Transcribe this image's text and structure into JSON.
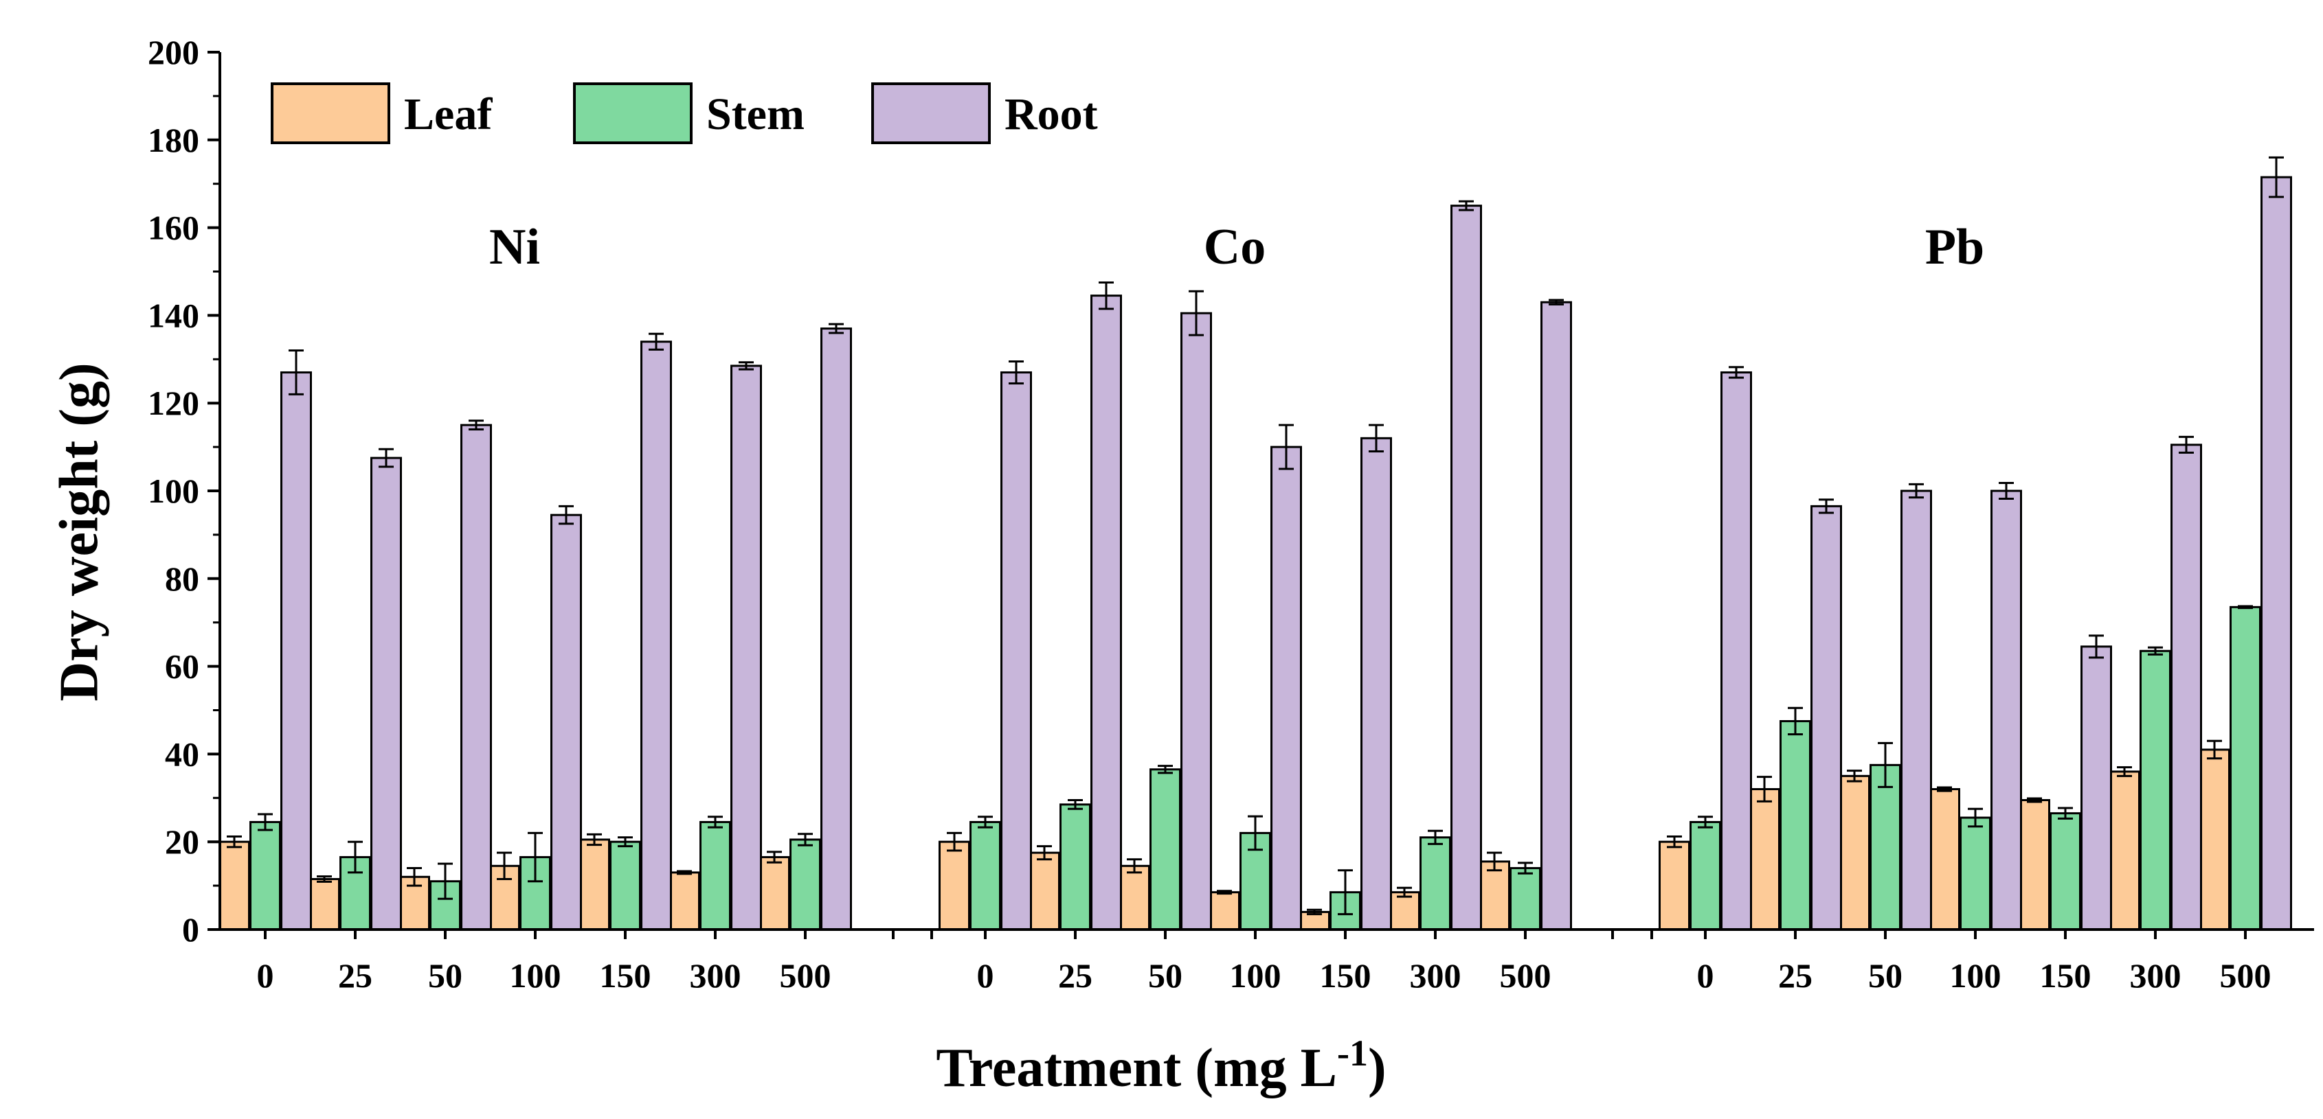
{
  "chart_data": {
    "type": "bar",
    "title": "",
    "xlabel": "Treatment (mg L",
    "xlabel_superscript": "-1",
    "xlabel_suffix": ")",
    "ylabel": "Dry weight (g)",
    "ylim": [
      0,
      200
    ],
    "yticks": [
      0,
      20,
      40,
      60,
      80,
      100,
      120,
      140,
      160,
      180,
      200
    ],
    "grid": false,
    "legend_position": "top-left",
    "categories": [
      "0",
      "25",
      "50",
      "100",
      "150",
      "300",
      "500"
    ],
    "series_meta": [
      {
        "name": "Leaf",
        "color": "#FDCB98"
      },
      {
        "name": "Stem",
        "color": "#7FD99F"
      },
      {
        "name": "Root",
        "color": "#C8B6DA"
      }
    ],
    "groups": [
      {
        "label": "Ni",
        "series": [
          {
            "name": "Leaf",
            "values": [
              20,
              11.5,
              12,
              14.5,
              20.5,
              13,
              16.5
            ],
            "errors": [
              1.2,
              0.6,
              2,
              3,
              1.2,
              0.3,
              1.2
            ]
          },
          {
            "name": "Stem",
            "values": [
              24.5,
              16.5,
              11,
              16.5,
              20,
              24.5,
              20.5
            ],
            "errors": [
              1.8,
              3.5,
              4,
              5.5,
              1,
              1.2,
              1.3
            ]
          },
          {
            "name": "Root",
            "values": [
              127,
              107.5,
              115,
              94.5,
              134,
              128.5,
              137
            ],
            "errors": [
              5,
              2,
              1,
              2,
              1.8,
              0.8,
              1
            ]
          }
        ]
      },
      {
        "label": "Co",
        "series": [
          {
            "name": "Leaf",
            "values": [
              20,
              17.5,
              14.5,
              8.5,
              4,
              8.5,
              15.5
            ],
            "errors": [
              2,
              1.5,
              1.5,
              0.3,
              0.5,
              1,
              2
            ]
          },
          {
            "name": "Stem",
            "values": [
              24.5,
              28.5,
              36.5,
              22,
              8.5,
              21,
              14
            ],
            "errors": [
              1.2,
              1,
              0.8,
              3.8,
              5,
              1.5,
              1.2
            ]
          },
          {
            "name": "Root",
            "values": [
              127,
              144.5,
              140.5,
              110,
              112,
              165,
              143
            ],
            "errors": [
              2.5,
              3,
              5,
              5,
              3,
              1,
              0.5
            ]
          }
        ]
      },
      {
        "label": "Pb",
        "series": [
          {
            "name": "Leaf",
            "values": [
              20,
              32,
              35,
              32,
              29.5,
              36,
              41
            ],
            "errors": [
              1.2,
              2.8,
              1.2,
              0.4,
              0.4,
              1,
              2
            ]
          },
          {
            "name": "Stem",
            "values": [
              24.5,
              47.5,
              37.5,
              25.5,
              26.5,
              63.5,
              73.5
            ],
            "errors": [
              1.2,
              3,
              5,
              2,
              1.2,
              0.8,
              0.2
            ]
          },
          {
            "name": "Root",
            "values": [
              127,
              96.5,
              100,
              100,
              64.5,
              110.5,
              171.5
            ],
            "errors": [
              1.2,
              1.5,
              1.5,
              1.8,
              2.5,
              1.8,
              4.5
            ]
          }
        ]
      }
    ]
  }
}
